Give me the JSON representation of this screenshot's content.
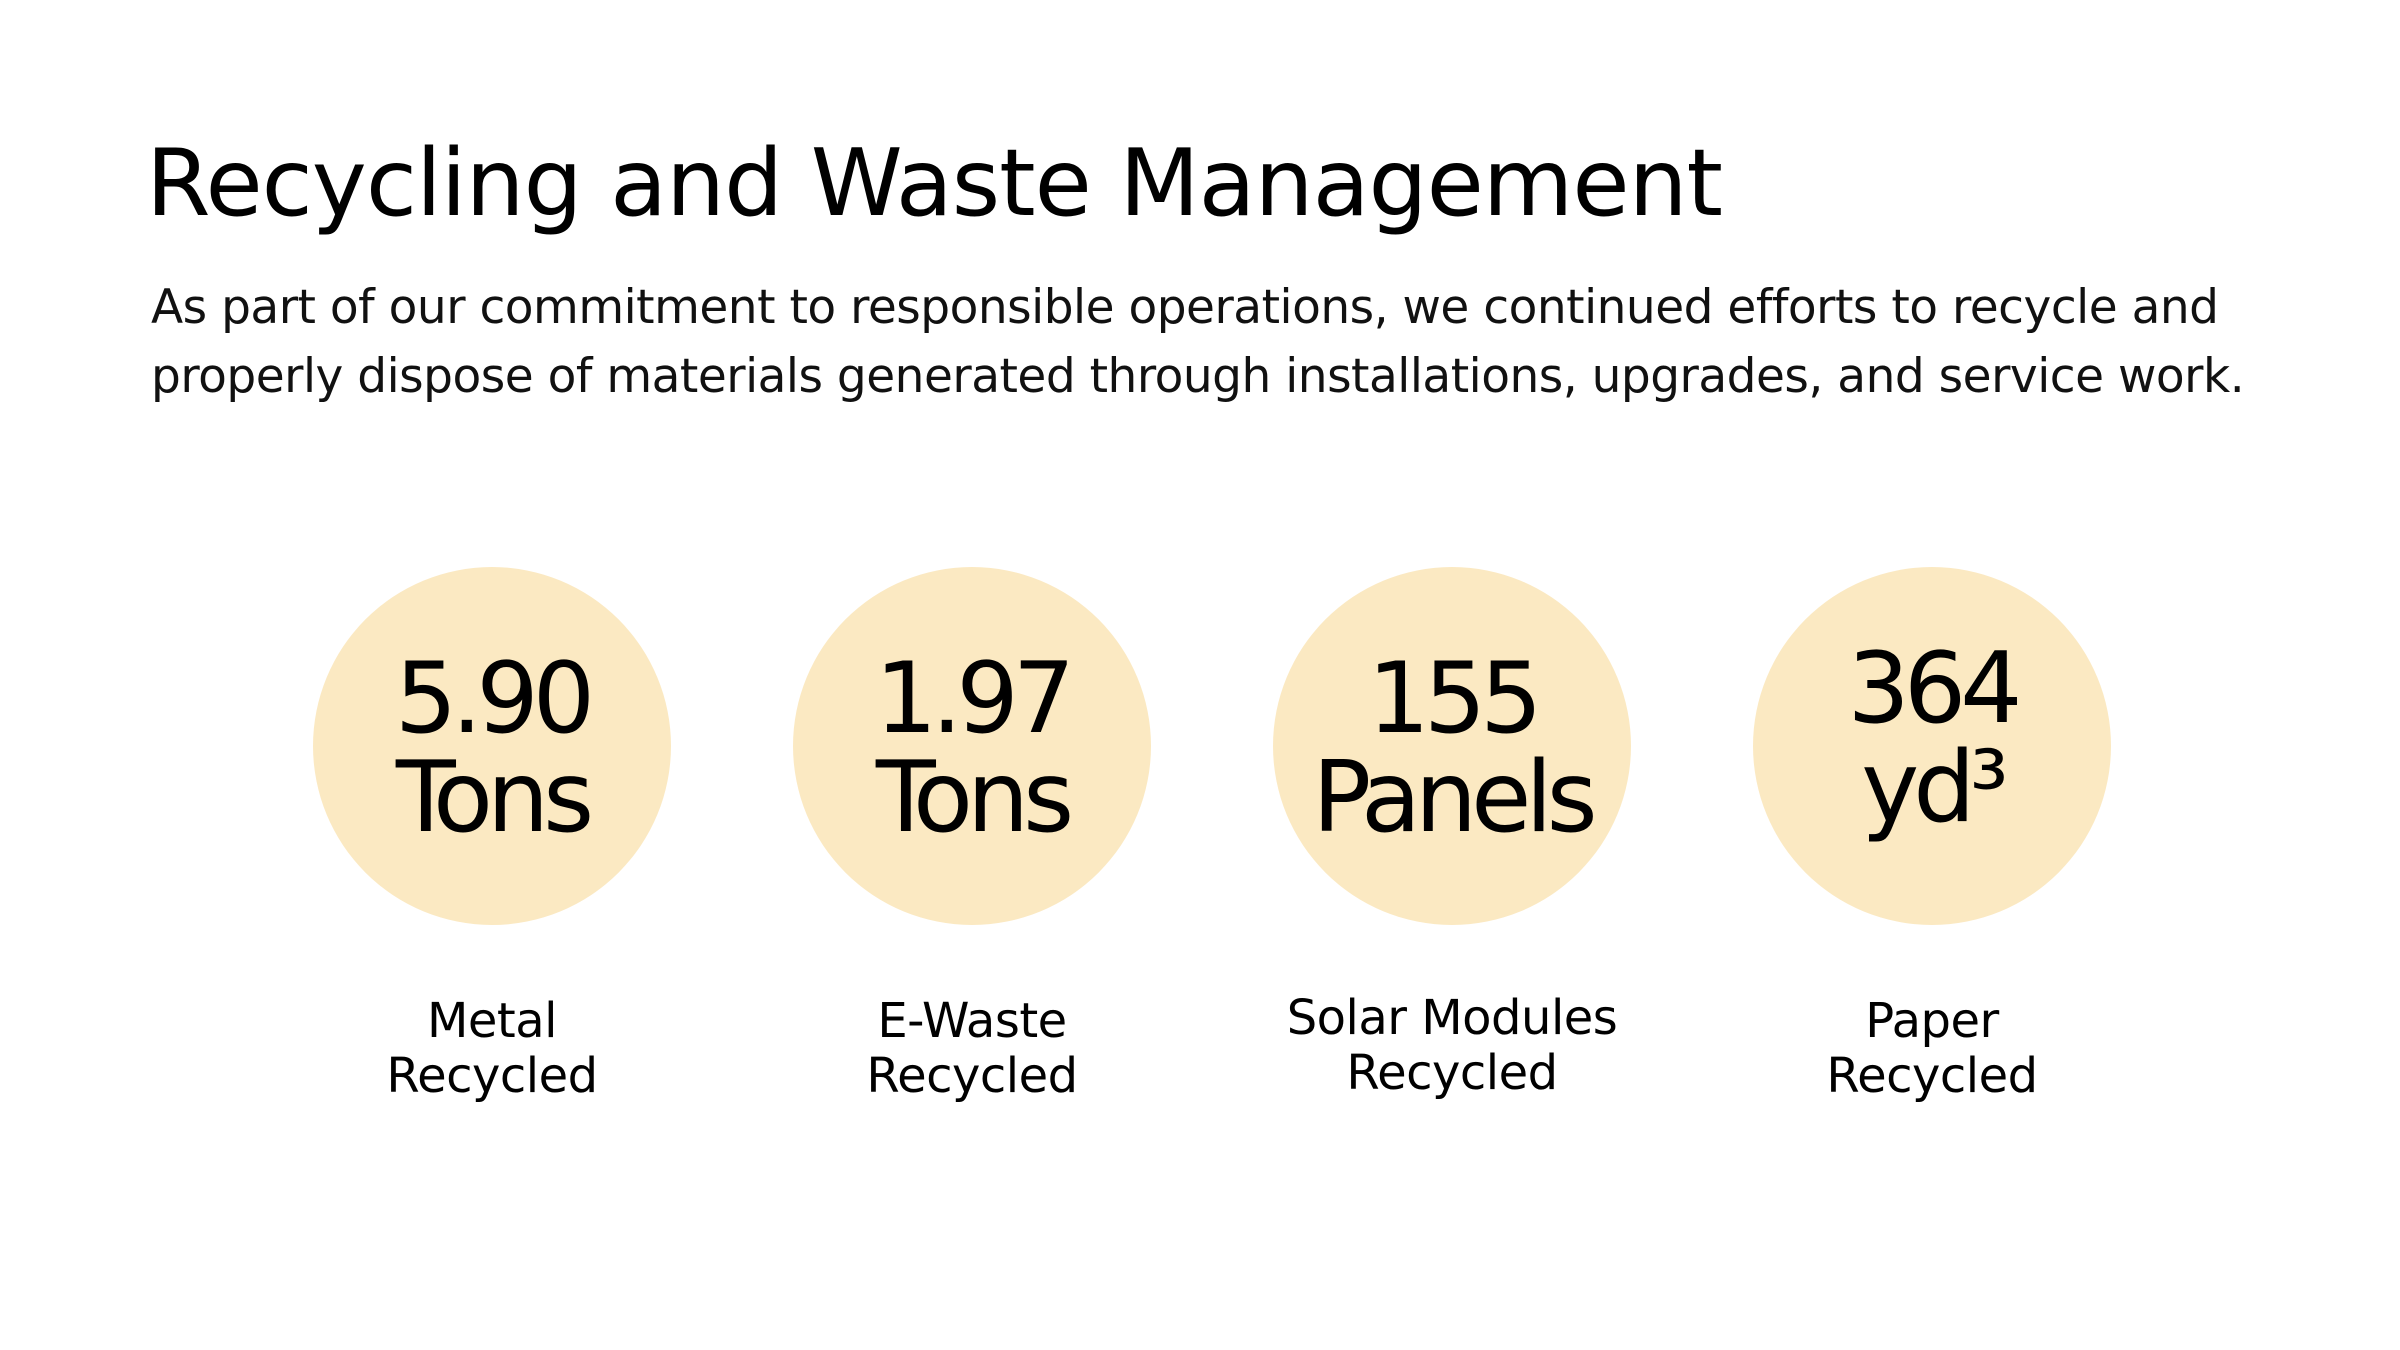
{
  "slide": {
    "title": "Recycling and Waste Management",
    "intro": "As part of our commitment to responsible operations, we continued efforts to recycle and properly dispose of materials generated through installations, upgrades, and service work."
  },
  "stats": [
    {
      "value": "5.90",
      "unit": "Tons",
      "label_line1": "Metal",
      "label_line2": "Recycled"
    },
    {
      "value": "1.97",
      "unit": "Tons",
      "label_line1": "E-Waste",
      "label_line2": "Recycled"
    },
    {
      "value": "155",
      "unit": "Panels",
      "label_line1": "Solar Modules",
      "label_line2": "Recycled"
    },
    {
      "value": "364",
      "unit": "yd³",
      "label_line1": "Paper",
      "label_line2": "Recycled"
    }
  ],
  "colors": {
    "circle_fill": "#fbe9c2",
    "text": "#000000",
    "background": "#ffffff"
  }
}
